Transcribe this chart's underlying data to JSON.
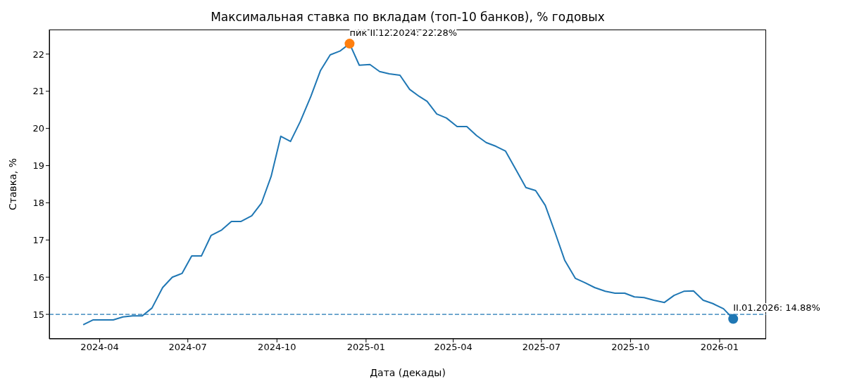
{
  "chart_data": {
    "type": "line",
    "title": "Максимальная ставка по вкладам (топ-10 банков), % годовых",
    "xlabel": "Дата (декады)",
    "ylabel": "Ставка, %",
    "x": [
      "2024-03-15",
      "2024-03-25",
      "2024-04-05",
      "2024-04-15",
      "2024-04-25",
      "2024-05-05",
      "2024-05-15",
      "2024-05-25",
      "2024-06-05",
      "2024-06-15",
      "2024-06-25",
      "2024-07-05",
      "2024-07-15",
      "2024-07-25",
      "2024-08-05",
      "2024-08-15",
      "2024-08-25",
      "2024-09-05",
      "2024-09-15",
      "2024-09-25",
      "2024-10-05",
      "2024-10-15",
      "2024-10-25",
      "2024-11-05",
      "2024-11-15",
      "2024-11-25",
      "2024-12-05",
      "2024-12-15",
      "2024-12-25",
      "2025-01-05",
      "2025-01-15",
      "2025-01-25",
      "2025-02-05",
      "2025-02-15",
      "2025-02-25",
      "2025-03-05",
      "2025-03-15",
      "2025-03-25",
      "2025-04-05",
      "2025-04-15",
      "2025-04-25",
      "2025-05-05",
      "2025-05-15",
      "2025-05-25",
      "2025-06-05",
      "2025-06-15",
      "2025-06-25",
      "2025-07-05",
      "2025-07-15",
      "2025-07-25",
      "2025-08-05",
      "2025-08-15",
      "2025-08-25",
      "2025-09-05",
      "2025-09-15",
      "2025-09-25",
      "2025-10-05",
      "2025-10-15",
      "2025-10-25",
      "2025-11-05",
      "2025-11-15",
      "2025-11-25",
      "2025-12-05",
      "2025-12-15",
      "2025-12-25",
      "2026-01-05",
      "2026-01-15"
    ],
    "series": [
      {
        "color": "#1f77b4",
        "line_style": "solid",
        "values": [
          14.72,
          14.85,
          14.85,
          14.85,
          14.93,
          14.96,
          14.96,
          15.17,
          15.72,
          16.0,
          16.1,
          16.57,
          16.57,
          17.12,
          17.27,
          17.5,
          17.5,
          17.65,
          17.99,
          18.71,
          19.79,
          19.65,
          20.18,
          20.86,
          21.56,
          21.98,
          22.08,
          22.28,
          21.7,
          21.72,
          21.53,
          21.47,
          21.43,
          21.05,
          20.86,
          20.73,
          20.39,
          20.28,
          20.05,
          20.05,
          19.81,
          19.62,
          19.52,
          19.39,
          18.88,
          18.41,
          18.33,
          17.93,
          17.21,
          16.46,
          15.97,
          15.85,
          15.72,
          15.62,
          15.57,
          15.57,
          15.47,
          15.45,
          15.38,
          15.32,
          15.51,
          15.62,
          15.63,
          15.38,
          15.29,
          15.15,
          14.88
        ]
      },
      {
        "type": "scatter",
        "color": "#ff7f0e",
        "marker": "circle",
        "x": [
          "2024-12-15"
        ],
        "values": [
          22.28
        ]
      },
      {
        "type": "scatter",
        "color": "#1f77b4",
        "marker": "circle",
        "x": [
          "2026-01-15"
        ],
        "values": [
          14.88
        ]
      }
    ],
    "annotations": [
      {
        "text": "пик II.12.2024: 22.28%",
        "x": "2024-12-15",
        "y": 22.28
      },
      {
        "text": "II.01.2026: 14.88%",
        "x": "2026-01-15",
        "y": 14.88
      }
    ],
    "ref_lines": [
      {
        "axis": "y",
        "value": 15,
        "color": "#1f77b4",
        "line_style": "dashed"
      }
    ],
    "xlim": [
      "2024-02-09",
      "2026-02-18"
    ],
    "xticks": [
      "2024-04",
      "2024-07",
      "2024-10",
      "2025-01",
      "2025-04",
      "2025-07",
      "2025-10",
      "2026-01"
    ],
    "ylim": [
      14.34,
      22.66
    ],
    "yticks": [
      15,
      16,
      17,
      18,
      19,
      20,
      21,
      22
    ],
    "grid": false
  }
}
